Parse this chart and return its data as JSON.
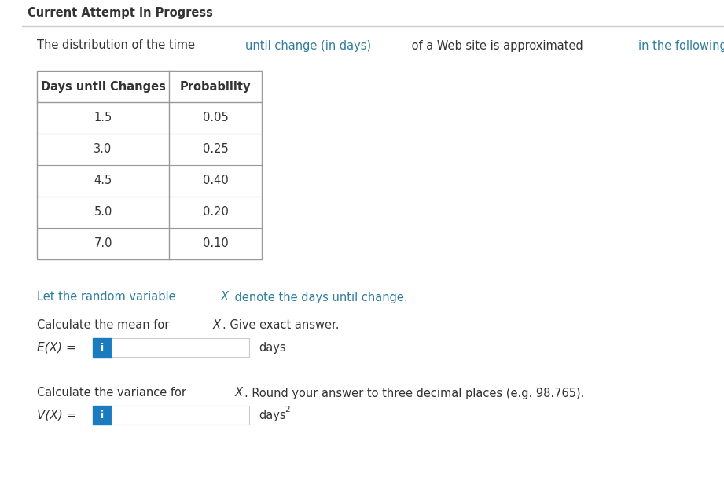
{
  "title": "Current Attempt in Progress",
  "table_headers": [
    "Days until Changes",
    "Probability"
  ],
  "table_data": [
    [
      "1.5",
      "0.05"
    ],
    [
      "3.0",
      "0.25"
    ],
    [
      "4.5",
      "0.40"
    ],
    [
      "5.0",
      "0.20"
    ],
    [
      "7.0",
      "0.10"
    ]
  ],
  "bg_color": "#ffffff",
  "title_color": "#333333",
  "text_color": "#333333",
  "teal_color": "#2e7d9e",
  "table_border_color": "#999999",
  "input_box_bg": "#1a7bbf",
  "input_text_color": "#ffffff",
  "input_field_border": "#cccccc"
}
